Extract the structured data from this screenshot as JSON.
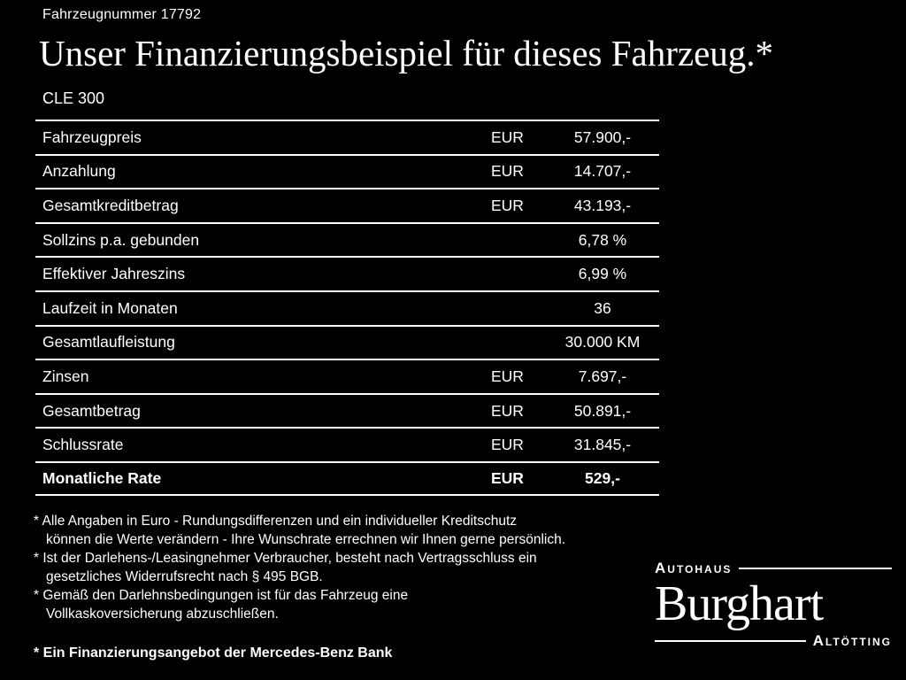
{
  "header": {
    "vehicle_number": "Fahrzeugnummer 17792",
    "title": "Unser Finanzierungsbeispiel für dieses Fahrzeug.*",
    "model": "CLE 300"
  },
  "table": {
    "rows": [
      {
        "label": "Fahrzeugpreis",
        "currency": "EUR",
        "value": "57.900,-",
        "bold": false
      },
      {
        "label": "Anzahlung",
        "currency": "EUR",
        "value": "14.707,-",
        "bold": false
      },
      {
        "label": "Gesamtkreditbetrag",
        "currency": "EUR",
        "value": "43.193,-",
        "bold": false
      },
      {
        "label": "Sollzins p.a. gebunden",
        "currency": "",
        "value": "6,78 %",
        "bold": false
      },
      {
        "label": "Effektiver Jahreszins",
        "currency": "",
        "value": "6,99 %",
        "bold": false
      },
      {
        "label": "Laufzeit in Monaten",
        "currency": "",
        "value": "36",
        "bold": false
      },
      {
        "label": "Gesamtlaufleistung",
        "currency": "",
        "value": "30.000 KM",
        "bold": false
      },
      {
        "label": "Zinsen",
        "currency": "EUR",
        "value": "7.697,-",
        "bold": false
      },
      {
        "label": "Gesamtbetrag",
        "currency": "EUR",
        "value": "50.891,-",
        "bold": false
      },
      {
        "label": "Schlussrate",
        "currency": "EUR",
        "value": "31.845,-",
        "bold": false
      },
      {
        "label": "Monatliche Rate",
        "currency": "EUR",
        "value": "529,-",
        "bold": true
      }
    ]
  },
  "footnotes": [
    "* Alle Angaben in Euro - Rundungsdifferenzen und ein individueller Kreditschutz\nkönnen die Werte verändern - Ihre Wunschrate errechnen wir Ihnen gerne persönlich.",
    "* Ist der Darlehens-/Leasingnehmer Verbraucher, besteht nach Vertragsschluss ein\ngesetzliches Widerrufsrecht nach § 495 BGB.",
    "* Gemäß den Darlehnsbedingungen ist für das Fahrzeug eine\nVollkaskoversicherung abzuschließen."
  ],
  "financing_note": "* Ein Finanzierungsangebot der Mercedes-Benz Bank",
  "logo": {
    "top": "Autohaus",
    "name": "Burghart",
    "bottom": "Altötting"
  },
  "colors": {
    "background": "#000000",
    "text": "#ffffff"
  }
}
